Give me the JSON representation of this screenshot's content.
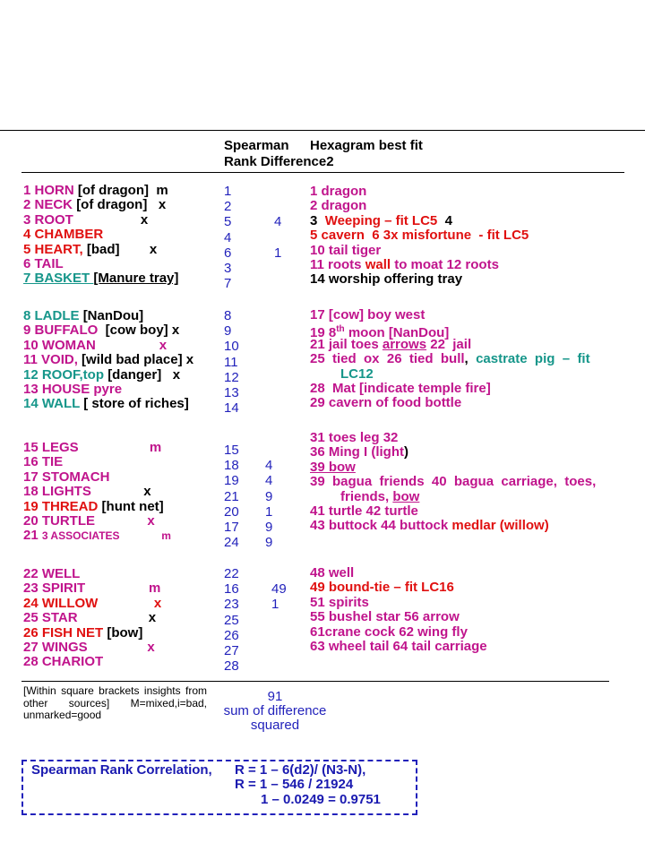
{
  "colors": {
    "magenta": "#c0148c",
    "red": "#e01010",
    "teal": "#16968a",
    "black": "#000000",
    "blue": "#2222bb"
  },
  "header": {
    "col_spearman_line1": "Spearman",
    "col_spearman_line2": "Rank Difference2",
    "col_hexagram": "Hexagram best fit"
  },
  "sections": [
    {
      "left": [
        [
          {
            "t": "1 HORN ",
            "c": "magenta"
          },
          {
            "t": "[of dragon]  m",
            "c": "black"
          }
        ],
        [
          {
            "t": "2 NECK ",
            "c": "magenta"
          },
          {
            "t": "[of dragon]   x",
            "c": "black"
          }
        ],
        [
          {
            "t": "3 ROOT",
            "c": "magenta"
          },
          {
            "t": "                  x",
            "c": "black"
          }
        ],
        [
          {
            "t": "4 CHAMBER",
            "c": "red"
          }
        ],
        [
          {
            "t": "5 HEART, ",
            "c": "red"
          },
          {
            "t": "[bad]        x",
            "c": "black"
          }
        ],
        [
          {
            "t": "6 TAIL",
            "c": "magenta"
          }
        ],
        [
          {
            "t": "7 BASKET ",
            "c": "teal",
            "u": true
          },
          {
            "t": "[Manure tray]",
            "c": "black",
            "u": true
          }
        ]
      ],
      "ranks": [
        "1",
        "2",
        "5",
        "4",
        "6",
        "3",
        "7"
      ],
      "diffs": [
        "",
        "",
        "4",
        "",
        "1",
        "",
        ""
      ],
      "right": [
        [
          {
            "t": "1 dragon",
            "c": "magenta"
          }
        ],
        [
          {
            "t": "2 dragon",
            "c": "magenta"
          }
        ],
        [
          {
            "t": "3  ",
            "c": "black"
          },
          {
            "t": "Weeping – fit LC5",
            "c": "red"
          },
          {
            "t": "  4",
            "c": "black"
          }
        ],
        [
          {
            "t": "5 cavern  6 3x misfortune  - fit LC5",
            "c": "red"
          }
        ],
        [
          {
            "t": "10 tail tiger",
            "c": "magenta"
          }
        ],
        [
          {
            "t": "11 roots ",
            "c": "magenta"
          },
          {
            "t": "wall",
            "c": "red"
          },
          {
            "t": " to moat 12 roots",
            "c": "magenta"
          }
        ],
        [
          {
            "t": "14 worship offering tray",
            "c": "black"
          }
        ]
      ]
    },
    {
      "left": [
        [
          {
            "t": "8 LADLE ",
            "c": "teal"
          },
          {
            "t": "[NanDou]",
            "c": "black"
          }
        ],
        [
          {
            "t": "9 BUFFALO  ",
            "c": "magenta"
          },
          {
            "t": "[cow boy] x",
            "c": "black"
          }
        ],
        [
          {
            "t": "10 WOMAN",
            "c": "magenta"
          },
          {
            "t": "                 x",
            "c": "magenta"
          }
        ],
        [
          {
            "t": "11 VOID, ",
            "c": "magenta"
          },
          {
            "t": "[wild bad place] x",
            "c": "black"
          }
        ],
        [
          {
            "t": "12 ROOF,top ",
            "c": "teal"
          },
          {
            "t": "[danger]   x",
            "c": "black"
          }
        ],
        [
          {
            "t": "13 HOUSE pyre",
            "c": "magenta"
          }
        ],
        [
          {
            "t": "14 WALL ",
            "c": "teal"
          },
          {
            "t": "[ store of riches]",
            "c": "black"
          }
        ]
      ],
      "ranks": [
        "8",
        "9",
        "10",
        "11",
        "12",
        "13",
        "14"
      ],
      "diffs": [
        "",
        "",
        "",
        "",
        "",
        "",
        ""
      ],
      "right": [
        [
          {
            "t": "17 [cow] boy west",
            "c": "magenta"
          }
        ],
        [
          {
            "t": "19 8",
            "c": "magenta"
          },
          {
            "t": "th",
            "c": "magenta",
            "sup": true
          },
          {
            "t": " moon [NanDou]",
            "c": "magenta"
          }
        ],
        [
          {
            "t": "21 jail toes ",
            "c": "magenta"
          },
          {
            "t": "arrows",
            "c": "magenta",
            "u": true
          },
          {
            "t": " 22  jail",
            "c": "magenta"
          }
        ],
        [
          {
            "t": "25  tied  ox  26  tied  bull",
            "c": "magenta"
          },
          {
            "t": ",  ",
            "c": "black"
          },
          {
            "t": "castrate  pig  –  fit",
            "c": "teal"
          }
        ],
        [
          {
            "t": "LC12",
            "c": "teal",
            "ind": true
          }
        ],
        [
          {
            "t": "28  Mat [indicate temple fire]",
            "c": "magenta"
          }
        ],
        [
          {
            "t": "29 cavern of food bottle",
            "c": "magenta"
          }
        ]
      ]
    },
    {
      "left": [
        [
          {
            "t": "15 LEGS",
            "c": "magenta"
          },
          {
            "t": "                   m",
            "c": "magenta"
          }
        ],
        [
          {
            "t": "16 TIE",
            "c": "magenta"
          }
        ],
        [
          {
            "t": "17 STOMACH",
            "c": "magenta"
          }
        ],
        [
          {
            "t": "18 LIGHTS",
            "c": "magenta"
          },
          {
            "t": "              x",
            "c": "black"
          }
        ],
        [
          {
            "t": "19 THREAD ",
            "c": "red"
          },
          {
            "t": "[hunt net]",
            "c": "black"
          }
        ],
        [
          {
            "t": "20 TURTLE",
            "c": "magenta"
          },
          {
            "t": "              x",
            "c": "magenta"
          }
        ],
        [
          {
            "t": "21 ",
            "c": "magenta"
          },
          {
            "t": "3 ASSOCIATES",
            "c": "magenta",
            "small": true
          },
          {
            "t": "              m",
            "c": "magenta",
            "small": true
          }
        ]
      ],
      "ranks": [
        "15",
        "18",
        "19",
        "21",
        "20",
        "17",
        "24"
      ],
      "diffs": [
        "",
        "4",
        "4",
        "9",
        "1",
        "9",
        "9"
      ],
      "right": [
        [
          {
            "t": "31 toes leg 32",
            "c": "magenta"
          }
        ],
        [
          {
            "t": "36 Ming I (light",
            "c": "magenta"
          },
          {
            "t": ")",
            "c": "black"
          }
        ],
        [
          {
            "t": "39 bow",
            "c": "magenta",
            "u": true
          }
        ],
        [
          {
            "t": "39  bagua  friends  40  bagua  carriage,  toes,",
            "c": "magenta"
          }
        ],
        [
          {
            "t": "friends, ",
            "c": "magenta",
            "ind": true
          },
          {
            "t": "bow",
            "c": "magenta",
            "u": true
          }
        ],
        [
          {
            "t": "41 turtle 42 turtle",
            "c": "magenta"
          }
        ],
        [
          {
            "t": "43 buttock 44 buttock ",
            "c": "magenta"
          },
          {
            "t": "medlar (willow)",
            "c": "red"
          }
        ]
      ]
    },
    {
      "left": [
        [
          {
            "t": "22 WELL",
            "c": "magenta"
          }
        ],
        [
          {
            "t": "23 SPIRIT",
            "c": "magenta"
          },
          {
            "t": "                 m",
            "c": "magenta"
          }
        ],
        [
          {
            "t": "24 WILLOW",
            "c": "red"
          },
          {
            "t": "               x",
            "c": "red"
          }
        ],
        [
          {
            "t": "25 STAR",
            "c": "magenta"
          },
          {
            "t": "                   x",
            "c": "black"
          }
        ],
        [
          {
            "t": "26 FISH NET ",
            "c": "red"
          },
          {
            "t": "[bow]",
            "c": "black"
          }
        ],
        [
          {
            "t": "27 WINGS",
            "c": "magenta"
          },
          {
            "t": "                x",
            "c": "magenta"
          }
        ],
        [
          {
            "t": "28 CHARIOT",
            "c": "magenta"
          }
        ]
      ],
      "ranks": [
        "22",
        "16",
        "23",
        "25",
        "26",
        "27",
        "28"
      ],
      "diffs": [
        "",
        "49",
        "1",
        "",
        "",
        "",
        ""
      ],
      "right": [
        [
          {
            "t": "48 well",
            "c": "magenta"
          }
        ],
        [
          {
            "t": "49 bound-tie – fit LC16",
            "c": "red"
          }
        ],
        [
          {
            "t": "51 spirits",
            "c": "magenta"
          }
        ],
        [
          {
            "t": "55 bushel star 56 arrow",
            "c": "magenta"
          }
        ],
        [
          {
            "t": "61crane cock 62 wing fly",
            "c": "magenta"
          }
        ],
        [
          {
            "t": "63 wheel tail 64 tail carriage",
            "c": "magenta"
          }
        ]
      ]
    }
  ],
  "notes": "[Within square brackets insights from other sources] M=mixed,i=bad, unmarked=good",
  "sum": {
    "value": "91",
    "label_line1": "sum of difference",
    "label_line2": "squared"
  },
  "formula": {
    "label": "Spearman Rank Correlation,",
    "line1": "R =   1 – 6(d2)/ (N3-N),",
    "line2": "R = 1 – 546 / 21924",
    "line3": "1 – 0.0249   =  0.9751"
  }
}
